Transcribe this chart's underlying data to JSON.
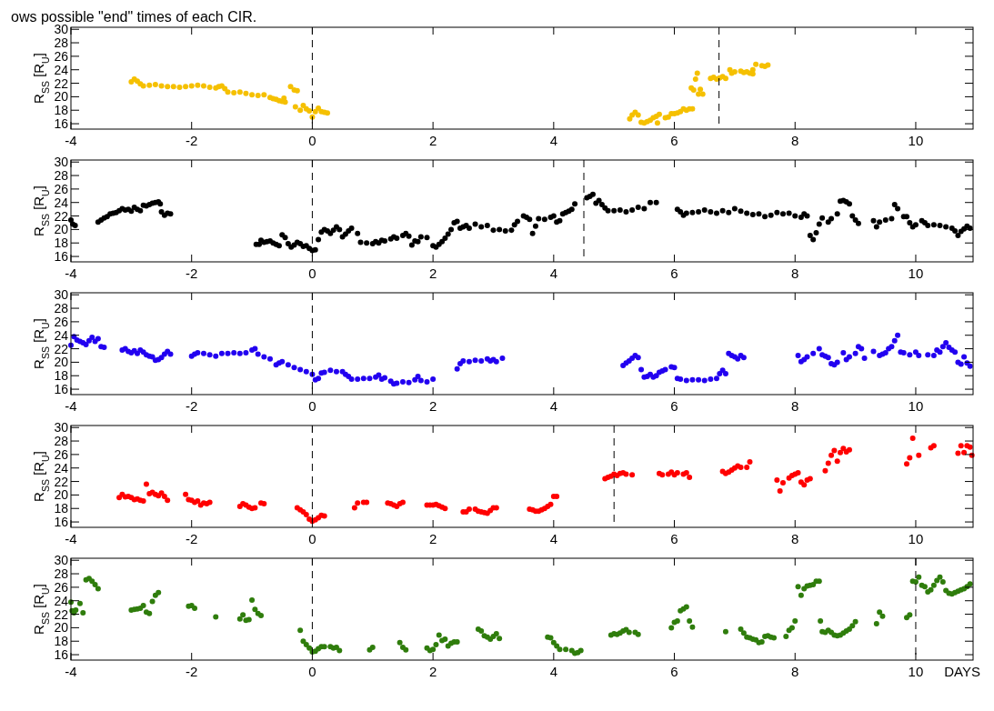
{
  "chart_data": [
    {
      "type": "scatter",
      "annotations": [
        "ows possible \"end\" times of each CIR."
      ],
      "ylabel": "R$_{SS}$ [R$_{U}$]",
      "xlim": [
        -4,
        10.95
      ],
      "xticks": [
        -4,
        -2,
        0,
        2,
        4,
        6,
        8,
        10
      ],
      "ylim": [
        15.2,
        30.3
      ],
      "yticks": [
        16,
        18,
        20,
        22,
        24,
        26,
        28,
        30
      ],
      "marker": "circle",
      "grid": false,
      "ref_lines": [
        {
          "axis": "x",
          "value": 0,
          "line_style": "dashed",
          "color": "#000000"
        },
        {
          "axis": "x",
          "value": 6.74,
          "line_style": "dashed",
          "color": "#000000"
        }
      ],
      "series": [
        {
          "color": "#f5c000",
          "x": [
            -3.0,
            -2.95,
            -2.9,
            -2.85,
            -2.8,
            -2.7,
            -2.6,
            -2.5,
            -2.4,
            -2.3,
            -2.2,
            -2.1,
            -2.0,
            -1.9,
            -1.8,
            -1.7,
            -1.6,
            -1.55,
            -1.5,
            -1.45,
            -1.4,
            -1.3,
            -1.2,
            -1.1,
            -1.0,
            -0.9,
            -0.8,
            -0.7,
            -0.65,
            -0.6,
            -0.55,
            -0.5,
            -0.47,
            -0.45,
            -0.36,
            -0.3,
            -0.25,
            -0.28,
            -0.2,
            -0.15,
            -0.1,
            -0.05,
            0.0,
            0.05,
            0.1,
            0.15,
            0.2,
            0.25,
            5.26,
            5.3,
            5.35,
            5.4,
            5.45,
            5.5,
            5.55,
            5.6,
            5.65,
            5.7,
            5.72,
            5.75,
            5.85,
            5.9,
            5.95,
            6.0,
            6.05,
            6.1,
            6.15,
            6.2,
            6.25,
            6.3,
            6.28,
            6.32,
            6.35,
            6.38,
            6.4,
            6.43,
            6.47,
            6.6,
            6.65,
            6.7,
            6.75,
            6.8,
            6.85,
            6.92,
            6.95,
            7.0,
            7.1,
            7.15,
            7.2,
            7.25,
            7.3,
            7.3,
            7.35,
            7.45,
            7.5,
            7.55
          ],
          "values": [
            22.2,
            22.6,
            22.3,
            21.9,
            21.6,
            21.7,
            21.8,
            21.6,
            21.5,
            21.5,
            21.4,
            21.5,
            21.6,
            21.7,
            21.6,
            21.4,
            21.3,
            21.5,
            21.6,
            21.2,
            20.7,
            20.6,
            20.7,
            20.5,
            20.3,
            20.2,
            20.3,
            19.9,
            19.7,
            19.6,
            19.4,
            19.3,
            19.8,
            19.2,
            21.5,
            21.0,
            20.9,
            18.5,
            18.0,
            18.7,
            18.2,
            17.9,
            17.0,
            17.8,
            18.3,
            17.8,
            17.7,
            17.6,
            16.7,
            17.3,
            17.7,
            17.3,
            16.2,
            16.1,
            16.3,
            16.5,
            16.9,
            17.1,
            16.1,
            17.4,
            16.9,
            17.0,
            17.5,
            17.5,
            17.6,
            17.8,
            18.2,
            18.0,
            18.2,
            18.2,
            21.3,
            21.0,
            22.6,
            23.5,
            20.4,
            21.1,
            20.4,
            22.7,
            22.9,
            22.6,
            22.8,
            23.0,
            22.7,
            24.0,
            23.5,
            23.7,
            23.8,
            23.6,
            23.7,
            23.5,
            23.4,
            24.0,
            24.8,
            24.6,
            24.5,
            24.7
          ]
        }
      ]
    },
    {
      "type": "scatter",
      "ylabel": "R$_{SS}$ [R$_{U}$]",
      "xlim": [
        -4,
        10.95
      ],
      "xticks": [
        -4,
        -2,
        0,
        2,
        4,
        6,
        8,
        10
      ],
      "ylim": [
        15.2,
        30.3
      ],
      "yticks": [
        16,
        18,
        20,
        22,
        24,
        26,
        28,
        30
      ],
      "marker": "circle",
      "grid": false,
      "ref_lines": [
        {
          "axis": "x",
          "value": 0,
          "line_style": "dashed",
          "color": "#000000"
        },
        {
          "axis": "x",
          "value": 4.5,
          "line_style": "dashed",
          "color": "#000000"
        }
      ],
      "series": [
        {
          "color": "#000000",
          "x": [
            -4.0,
            -3.97,
            -3.93,
            -3.55,
            -3.5,
            -3.45,
            -3.4,
            -3.35,
            -3.3,
            -3.25,
            -3.2,
            -3.15,
            -3.1,
            -3.05,
            -3.0,
            -2.95,
            -2.9,
            -2.85,
            -2.8,
            -2.75,
            -2.7,
            -2.65,
            -2.6,
            -2.55,
            -2.52,
            -2.5,
            -2.45,
            -2.4,
            -2.35,
            -0.93,
            -0.88,
            -0.85,
            -0.8,
            -0.75,
            -0.7,
            -0.65,
            -0.6,
            -0.55,
            -0.5,
            -0.45,
            -0.4,
            -0.35,
            -0.3,
            -0.25,
            -0.2,
            -0.15,
            -0.1,
            -0.05,
            0.0,
            0.05,
            0.1,
            0.15,
            0.2,
            0.25,
            0.3,
            0.35,
            0.4,
            0.45,
            0.5,
            0.55,
            0.6,
            0.65,
            0.75,
            0.8,
            0.9,
            1.0,
            1.05,
            1.1,
            1.15,
            1.2,
            1.3,
            1.35,
            1.4,
            1.5,
            1.55,
            1.6,
            1.65,
            1.7,
            1.75,
            1.8,
            1.9,
            2.0,
            2.05,
            2.1,
            2.15,
            2.2,
            2.25,
            2.3,
            2.35,
            2.4,
            2.45,
            2.5,
            2.55,
            2.6,
            2.7,
            2.8,
            2.9,
            3.0,
            3.1,
            3.2,
            3.3,
            3.35,
            3.4,
            3.5,
            3.55,
            3.6,
            3.65,
            3.7,
            3.75,
            3.85,
            3.95,
            4.0,
            4.05,
            4.1,
            4.15,
            4.2,
            4.25,
            4.3,
            4.35,
            4.55,
            4.6,
            4.65,
            4.7,
            4.75,
            4.8,
            4.85,
            4.9,
            5.0,
            5.1,
            5.2,
            5.3,
            5.4,
            5.5,
            5.6,
            5.7,
            6.05,
            6.1,
            6.15,
            6.2,
            6.3,
            6.4,
            6.5,
            6.6,
            6.7,
            6.8,
            6.9,
            7.0,
            7.1,
            7.2,
            7.3,
            7.4,
            7.5,
            7.6,
            7.7,
            7.8,
            7.9,
            8.0,
            8.1,
            8.15,
            8.2,
            8.25,
            8.3,
            8.35,
            8.4,
            8.45,
            8.55,
            8.6,
            8.7,
            8.75,
            8.8,
            8.85,
            8.9,
            8.95,
            9.0,
            9.05,
            9.3,
            9.35,
            9.4,
            9.5,
            9.6,
            9.65,
            9.7,
            9.8,
            9.85,
            9.9,
            9.95,
            10.0,
            10.1,
            10.15,
            10.2,
            10.3,
            10.4,
            10.5,
            10.6,
            10.65,
            10.7,
            10.75,
            10.8,
            10.85,
            10.9
          ],
          "values": [
            21.4,
            20.8,
            20.6,
            21.1,
            21.4,
            21.7,
            21.9,
            22.3,
            22.4,
            22.5,
            22.8,
            23.1,
            22.9,
            23.0,
            22.7,
            23.3,
            23.0,
            22.8,
            23.6,
            23.5,
            23.7,
            23.9,
            24.0,
            24.1,
            23.8,
            22.6,
            22.1,
            22.4,
            22.3,
            17.8,
            17.8,
            18.4,
            18.1,
            18.2,
            18.3,
            18.0,
            17.8,
            17.6,
            19.2,
            18.8,
            17.9,
            17.4,
            17.7,
            18.1,
            17.9,
            17.5,
            17.6,
            17.2,
            16.9,
            17.0,
            18.5,
            19.6,
            20.0,
            19.8,
            19.4,
            19.9,
            20.4,
            20.0,
            18.9,
            19.3,
            19.8,
            20.2,
            19.4,
            18.1,
            18.0,
            17.9,
            18.2,
            18.0,
            18.4,
            18.3,
            18.6,
            18.9,
            18.7,
            19.1,
            19.4,
            19.0,
            17.7,
            18.3,
            18.2,
            18.9,
            18.8,
            17.6,
            17.4,
            17.8,
            18.2,
            18.7,
            19.3,
            20.0,
            21.0,
            21.2,
            20.2,
            20.4,
            20.6,
            20.2,
            20.8,
            20.4,
            20.6,
            19.9,
            20.0,
            19.8,
            19.9,
            20.7,
            21.2,
            22.0,
            21.8,
            21.5,
            19.4,
            20.5,
            21.6,
            21.5,
            21.8,
            22.0,
            21.1,
            21.3,
            22.3,
            22.5,
            22.7,
            23.0,
            23.8,
            24.7,
            24.9,
            25.2,
            23.9,
            24.3,
            23.7,
            23.2,
            22.8,
            22.8,
            22.9,
            22.6,
            22.9,
            23.3,
            23.1,
            24.0,
            24.0,
            23.0,
            22.6,
            22.1,
            22.4,
            22.5,
            22.6,
            22.9,
            22.6,
            22.4,
            22.8,
            22.5,
            23.1,
            22.7,
            22.4,
            22.2,
            22.3,
            21.9,
            22.1,
            22.5,
            22.3,
            22.4,
            22.0,
            21.8,
            22.3,
            22.0,
            19.1,
            18.5,
            19.5,
            20.8,
            21.7,
            21.1,
            21.6,
            22.3,
            24.2,
            24.3,
            24.1,
            23.8,
            22.0,
            21.4,
            20.9,
            21.3,
            20.4,
            21.1,
            21.4,
            21.6,
            23.7,
            23.1,
            21.9,
            21.9,
            21.0,
            20.4,
            20.7,
            21.3,
            21.0,
            20.6,
            20.7,
            20.6,
            20.4,
            20.2,
            19.8,
            19.1,
            19.7,
            20.1,
            20.5,
            20.2
          ]
        }
      ]
    },
    {
      "type": "scatter",
      "ylabel": "R$_{SS}$ [R$_{U}$]",
      "xlim": [
        -4,
        10.95
      ],
      "xticks": [
        -4,
        -2,
        0,
        2,
        4,
        6,
        8,
        10
      ],
      "ylim": [
        15.2,
        30.3
      ],
      "yticks": [
        16,
        18,
        20,
        22,
        24,
        26,
        28,
        30
      ],
      "marker": "circle",
      "grid": false,
      "ref_lines": [
        {
          "axis": "x",
          "value": 0,
          "line_style": "dashed",
          "color": "#000000"
        }
      ],
      "series": [
        {
          "color": "#2200f0",
          "x": [
            -4.0,
            -3.95,
            -3.9,
            -3.85,
            -3.8,
            -3.75,
            -3.7,
            -3.65,
            -3.6,
            -3.55,
            -3.5,
            -3.45,
            -3.15,
            -3.1,
            -3.05,
            -3.0,
            -2.95,
            -2.9,
            -2.85,
            -2.8,
            -2.75,
            -2.7,
            -2.65,
            -2.6,
            -2.55,
            -2.5,
            -2.45,
            -2.4,
            -2.35,
            -2.0,
            -1.95,
            -1.9,
            -1.8,
            -1.7,
            -1.6,
            -1.5,
            -1.4,
            -1.3,
            -1.2,
            -1.1,
            -1.0,
            -0.95,
            -0.9,
            -0.8,
            -0.7,
            -0.6,
            -0.55,
            -0.5,
            -0.4,
            -0.3,
            -0.2,
            -0.1,
            0.0,
            0.05,
            0.1,
            0.15,
            0.2,
            0.3,
            0.4,
            0.5,
            0.55,
            0.6,
            0.65,
            0.75,
            0.85,
            0.95,
            1.05,
            1.1,
            1.15,
            1.2,
            1.3,
            1.35,
            1.4,
            1.5,
            1.6,
            1.7,
            1.75,
            1.8,
            1.9,
            2.0,
            2.4,
            2.45,
            2.5,
            2.6,
            2.7,
            2.8,
            2.9,
            2.95,
            3.0,
            3.05,
            3.15,
            5.15,
            5.2,
            5.25,
            5.3,
            5.35,
            5.4,
            5.45,
            5.5,
            5.55,
            5.6,
            5.65,
            5.7,
            5.75,
            5.8,
            5.85,
            5.95,
            6.0,
            6.05,
            6.1,
            6.2,
            6.3,
            6.4,
            6.5,
            6.6,
            6.7,
            6.75,
            6.8,
            6.85,
            6.9,
            6.95,
            7.0,
            7.05,
            7.1,
            7.15,
            8.05,
            8.1,
            8.15,
            8.2,
            8.3,
            8.4,
            8.45,
            8.5,
            8.55,
            8.6,
            8.65,
            8.7,
            8.8,
            8.85,
            8.9,
            9.0,
            9.05,
            9.1,
            9.15,
            9.3,
            9.4,
            9.45,
            9.5,
            9.55,
            9.6,
            9.65,
            9.7,
            9.75,
            9.8,
            9.9,
            10.0,
            10.05,
            10.2,
            10.3,
            10.35,
            10.4,
            10.45,
            10.5,
            10.55,
            10.6,
            10.65,
            10.7,
            10.75,
            10.8,
            10.85,
            10.9
          ],
          "values": [
            22.5,
            23.8,
            23.3,
            23.1,
            22.9,
            22.6,
            23.2,
            23.7,
            23.1,
            23.5,
            22.3,
            22.2,
            21.8,
            22.0,
            21.6,
            21.4,
            21.7,
            21.3,
            21.8,
            21.5,
            21.1,
            20.9,
            20.8,
            20.3,
            20.4,
            20.7,
            21.2,
            21.6,
            21.2,
            20.9,
            21.2,
            21.4,
            21.3,
            21.1,
            20.9,
            21.3,
            21.3,
            21.4,
            21.3,
            21.4,
            21.8,
            22.0,
            21.2,
            20.8,
            20.5,
            19.6,
            19.9,
            20.1,
            19.6,
            19.2,
            18.9,
            18.6,
            18.2,
            17.4,
            17.6,
            18.4,
            18.5,
            18.8,
            18.6,
            18.6,
            18.2,
            17.9,
            17.5,
            17.5,
            17.6,
            17.6,
            17.8,
            18.1,
            17.5,
            17.7,
            17.2,
            16.8,
            16.9,
            17.1,
            17.0,
            17.4,
            17.9,
            17.3,
            17.1,
            17.5,
            19.0,
            19.8,
            20.2,
            20.1,
            20.3,
            20.2,
            20.5,
            20.2,
            20.4,
            20.1,
            20.6,
            19.5,
            19.9,
            20.2,
            20.6,
            21.0,
            20.7,
            18.9,
            17.8,
            17.9,
            18.2,
            17.8,
            18.0,
            18.5,
            18.7,
            18.9,
            19.3,
            19.2,
            17.6,
            17.5,
            17.3,
            17.4,
            17.4,
            17.3,
            17.5,
            17.6,
            18.3,
            18.8,
            18.3,
            21.3,
            21.0,
            20.8,
            20.5,
            21.0,
            20.7,
            21.0,
            20.1,
            20.4,
            20.8,
            21.3,
            22.0,
            21.1,
            20.9,
            20.7,
            19.8,
            19.6,
            20.0,
            21.4,
            20.4,
            20.8,
            21.3,
            22.3,
            22.0,
            20.6,
            21.6,
            21.0,
            21.2,
            21.4,
            22.0,
            22.3,
            23.2,
            24.0,
            21.5,
            21.4,
            21.1,
            21.5,
            21.0,
            21.1,
            21.0,
            21.8,
            21.5,
            22.3,
            22.9,
            22.2,
            21.8,
            21.5,
            20.0,
            19.7,
            20.8,
            19.9,
            19.4
          ]
        }
      ]
    },
    {
      "type": "scatter",
      "ylabel": "R$_{SS}$ [R$_{U}$]",
      "xlim": [
        -4,
        10.95
      ],
      "xticks": [
        -4,
        -2,
        0,
        2,
        4,
        6,
        8,
        10
      ],
      "ylim": [
        15.2,
        30.3
      ],
      "yticks": [
        16,
        18,
        20,
        22,
        24,
        26,
        28,
        30
      ],
      "marker": "circle",
      "grid": false,
      "ref_lines": [
        {
          "axis": "x",
          "value": 0,
          "line_style": "dashed",
          "color": "#000000"
        },
        {
          "axis": "x",
          "value": 5,
          "line_style": "dashed",
          "color": "#000000"
        }
      ],
      "series": [
        {
          "color": "#ff0000",
          "x": [
            -3.2,
            -3.15,
            -3.1,
            -3.05,
            -3.0,
            -2.95,
            -2.9,
            -2.85,
            -2.8,
            -2.75,
            -2.7,
            -2.65,
            -2.6,
            -2.55,
            -2.5,
            -2.45,
            -2.4,
            -2.1,
            -2.05,
            -2.0,
            -1.95,
            -1.9,
            -1.85,
            -1.8,
            -1.75,
            -1.7,
            -1.2,
            -1.15,
            -1.1,
            -1.05,
            -1.0,
            -0.95,
            -0.85,
            -0.8,
            -0.25,
            -0.2,
            -0.15,
            -0.1,
            -0.05,
            0.0,
            0.05,
            0.1,
            0.15,
            0.2,
            0.7,
            0.75,
            0.85,
            0.9,
            1.25,
            1.3,
            1.35,
            1.4,
            1.45,
            1.5,
            1.9,
            1.95,
            2.0,
            2.05,
            2.1,
            2.15,
            2.2,
            2.5,
            2.55,
            2.6,
            2.7,
            2.75,
            2.8,
            2.85,
            2.9,
            2.95,
            3.0,
            3.05,
            3.6,
            3.65,
            3.7,
            3.75,
            3.8,
            3.85,
            3.9,
            3.95,
            4.0,
            4.05,
            4.85,
            4.9,
            4.95,
            5.0,
            5.05,
            5.1,
            5.15,
            5.2,
            5.3,
            5.75,
            5.8,
            5.9,
            5.95,
            6.0,
            6.05,
            6.15,
            6.2,
            6.25,
            6.8,
            6.85,
            6.9,
            6.95,
            7.0,
            7.05,
            7.1,
            7.2,
            7.25,
            7.7,
            7.75,
            7.8,
            7.9,
            7.95,
            8.0,
            8.05,
            8.1,
            8.15,
            8.2,
            8.25,
            8.5,
            8.55,
            8.6,
            8.65,
            8.7,
            8.75,
            8.8,
            8.85,
            8.9,
            9.85,
            9.9,
            9.95,
            10.05,
            10.25,
            10.3,
            10.7,
            10.75,
            10.8,
            10.85,
            10.9,
            10.93
          ],
          "values": [
            19.6,
            20.1,
            19.7,
            19.8,
            19.6,
            19.3,
            19.4,
            19.2,
            19.1,
            21.6,
            20.2,
            20.4,
            20.1,
            19.9,
            20.3,
            19.8,
            19.2,
            20.1,
            19.3,
            19.2,
            18.9,
            19.1,
            18.5,
            18.8,
            18.7,
            18.9,
            18.3,
            18.7,
            18.5,
            18.2,
            18.0,
            18.1,
            18.8,
            18.7,
            18.1,
            17.8,
            17.5,
            17.1,
            16.4,
            16.1,
            16.3,
            16.6,
            17.0,
            16.9,
            18.1,
            18.8,
            18.9,
            18.9,
            18.8,
            18.7,
            18.5,
            18.3,
            18.7,
            18.9,
            18.5,
            18.5,
            18.5,
            18.6,
            18.4,
            18.2,
            18.0,
            17.5,
            17.5,
            17.9,
            17.9,
            17.6,
            17.5,
            17.4,
            17.3,
            17.7,
            18.1,
            18.1,
            17.9,
            17.8,
            17.6,
            17.6,
            17.8,
            18.0,
            18.3,
            18.6,
            19.8,
            19.8,
            22.4,
            22.6,
            22.8,
            23.1,
            22.9,
            23.2,
            23.3,
            23.1,
            23.0,
            23.2,
            23.0,
            23.1,
            23.4,
            23.0,
            23.3,
            23.1,
            23.3,
            22.6,
            23.5,
            23.2,
            23.4,
            23.7,
            24.0,
            24.3,
            24.1,
            24.1,
            24.9,
            22.2,
            20.6,
            21.8,
            22.5,
            22.9,
            23.1,
            23.3,
            21.9,
            21.5,
            22.2,
            22.4,
            23.6,
            24.7,
            25.9,
            26.6,
            25.0,
            26.3,
            26.9,
            26.4,
            26.7,
            24.6,
            25.5,
            28.4,
            25.9,
            27.0,
            27.3,
            26.2,
            27.3,
            26.3,
            27.3,
            27.1,
            25.9
          ]
        }
      ]
    },
    {
      "type": "scatter",
      "ylabel": "R$_{SS}$ [R$_{U}$]",
      "xlabel": "DAYS",
      "xlim": [
        -4,
        10.95
      ],
      "xticks": [
        -4,
        -2,
        0,
        2,
        4,
        6,
        8,
        10
      ],
      "ylim": [
        15.2,
        30.3
      ],
      "yticks": [
        16,
        18,
        20,
        22,
        24,
        26,
        28,
        30
      ],
      "marker": "circle",
      "grid": false,
      "ref_lines": [
        {
          "axis": "x",
          "value": 0,
          "line_style": "dashed",
          "color": "#000000"
        },
        {
          "axis": "x",
          "value": 10,
          "line_style": "dashed",
          "color": "#000000"
        }
      ],
      "series": [
        {
          "color": "#2f7d0c",
          "x": [
            -4.0,
            -3.98,
            -3.95,
            -3.92,
            -3.85,
            -3.8,
            -3.75,
            -3.7,
            -3.65,
            -3.6,
            -3.55,
            -3.0,
            -2.95,
            -2.9,
            -2.85,
            -2.8,
            -2.75,
            -2.7,
            -2.65,
            -2.6,
            -2.55,
            -2.05,
            -2.0,
            -1.95,
            -1.6,
            -1.2,
            -1.15,
            -1.1,
            -1.05,
            -1.0,
            -0.95,
            -0.9,
            -0.85,
            -0.2,
            -0.15,
            -0.1,
            -0.05,
            0.0,
            0.05,
            0.1,
            0.15,
            0.2,
            0.3,
            0.35,
            0.4,
            0.45,
            0.95,
            1.0,
            1.45,
            1.5,
            1.55,
            1.9,
            1.95,
            2.0,
            2.05,
            2.1,
            2.15,
            2.2,
            2.25,
            2.3,
            2.35,
            2.4,
            2.75,
            2.8,
            2.85,
            2.9,
            2.95,
            3.0,
            3.05,
            3.1,
            3.9,
            3.95,
            4.0,
            4.05,
            4.1,
            4.2,
            4.3,
            4.35,
            4.4,
            4.45,
            4.95,
            5.0,
            5.05,
            5.1,
            5.15,
            5.2,
            5.25,
            5.35,
            5.4,
            5.95,
            6.0,
            6.05,
            6.1,
            6.15,
            6.2,
            6.25,
            6.3,
            6.85,
            7.1,
            7.15,
            7.2,
            7.25,
            7.3,
            7.35,
            7.4,
            7.45,
            7.5,
            7.55,
            7.6,
            7.65,
            7.85,
            7.9,
            7.95,
            8.0,
            8.05,
            8.1,
            8.15,
            8.2,
            8.25,
            8.3,
            8.35,
            8.4,
            8.42,
            8.45,
            8.5,
            8.55,
            8.6,
            8.65,
            8.7,
            8.75,
            8.8,
            8.85,
            8.9,
            8.95,
            9.0,
            9.35,
            9.4,
            9.45,
            9.85,
            9.9,
            9.95,
            10.0,
            10.05,
            10.1,
            10.15,
            10.2,
            10.25,
            10.3,
            10.35,
            10.4,
            10.45,
            10.5,
            10.55,
            10.6,
            10.65,
            10.7,
            10.75,
            10.8,
            10.85,
            10.9
          ],
          "values": [
            23.8,
            22.5,
            22.2,
            22.6,
            23.6,
            22.2,
            27.1,
            27.3,
            26.9,
            26.4,
            25.8,
            22.6,
            22.7,
            22.8,
            22.9,
            23.3,
            22.3,
            22.1,
            23.9,
            24.8,
            25.2,
            23.2,
            23.3,
            22.9,
            21.6,
            21.3,
            21.9,
            21.1,
            21.2,
            24.1,
            22.7,
            22.1,
            21.8,
            19.6,
            18.0,
            17.5,
            17.0,
            16.4,
            16.5,
            16.9,
            17.2,
            17.2,
            17.2,
            17.0,
            17.1,
            16.6,
            16.7,
            17.1,
            17.8,
            17.1,
            16.7,
            17.0,
            16.6,
            16.8,
            17.5,
            18.9,
            18.1,
            18.3,
            17.3,
            17.7,
            17.9,
            17.9,
            19.8,
            19.5,
            18.8,
            18.6,
            18.3,
            18.7,
            19.1,
            18.4,
            18.6,
            18.5,
            17.8,
            17.3,
            16.8,
            16.8,
            16.6,
            16.2,
            16.3,
            16.6,
            18.9,
            19.1,
            19.0,
            19.2,
            19.5,
            19.7,
            19.3,
            19.3,
            19.0,
            20.0,
            20.8,
            21.0,
            22.5,
            22.8,
            23.1,
            21.0,
            20.1,
            19.4,
            19.8,
            19.2,
            18.6,
            18.5,
            18.3,
            18.2,
            17.8,
            17.9,
            18.7,
            18.8,
            18.6,
            18.5,
            18.7,
            19.6,
            20.0,
            21.0,
            26.1,
            24.8,
            25.8,
            26.2,
            26.3,
            26.4,
            26.9,
            26.9,
            21.0,
            19.4,
            19.3,
            19.6,
            19.3,
            18.9,
            18.8,
            18.9,
            19.2,
            19.5,
            19.8,
            20.3,
            20.9,
            20.6,
            22.3,
            21.7,
            21.5,
            21.9,
            26.9,
            26.8,
            27.5,
            26.3,
            26.1,
            25.3,
            25.6,
            26.3,
            27.0,
            27.5,
            26.8,
            25.5,
            25.1,
            25.0,
            25.2,
            25.4,
            25.6,
            25.8,
            26.1,
            26.5
          ]
        }
      ]
    }
  ]
}
